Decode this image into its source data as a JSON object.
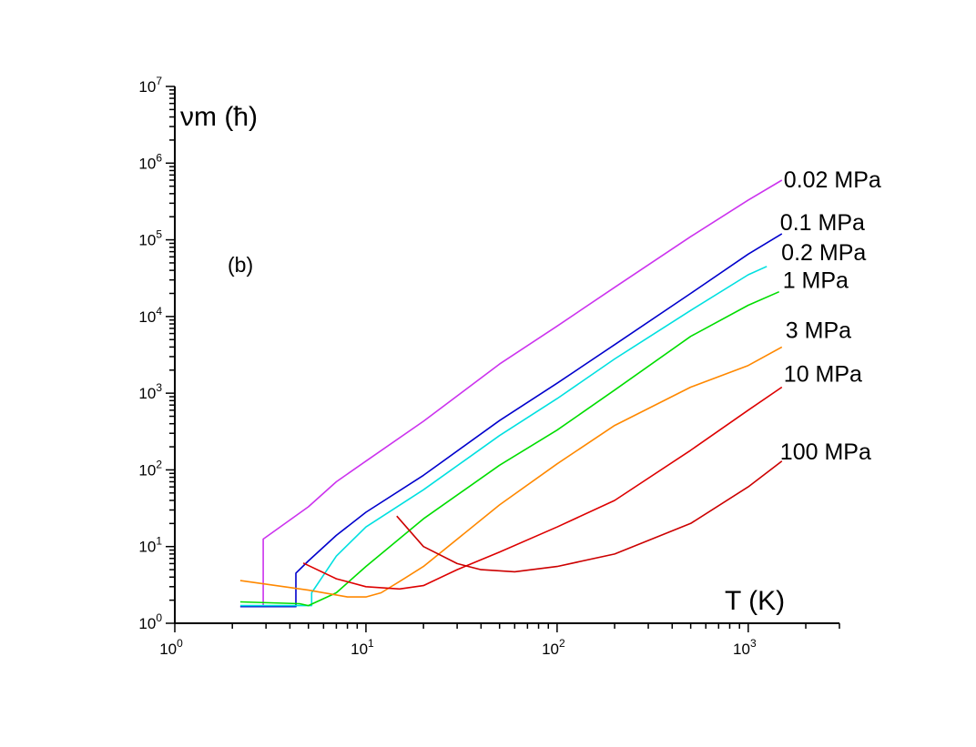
{
  "chart_data": {
    "type": "line",
    "panel_label": "(b)",
    "ylabel": "νm (ħ)",
    "xlabel": "T (K)",
    "xscale": "log",
    "yscale": "log",
    "xlim": [
      1,
      3000
    ],
    "ylim": [
      1,
      10000000
    ],
    "x_ticks": [
      {
        "base": "10",
        "exp": "0",
        "value": 1
      },
      {
        "base": "10",
        "exp": "1",
        "value": 10
      },
      {
        "base": "10",
        "exp": "2",
        "value": 100
      },
      {
        "base": "10",
        "exp": "3",
        "value": 1000
      }
    ],
    "y_ticks": [
      {
        "base": "10",
        "exp": "0",
        "value": 1
      },
      {
        "base": "10",
        "exp": "1",
        "value": 10
      },
      {
        "base": "10",
        "exp": "2",
        "value": 100
      },
      {
        "base": "10",
        "exp": "3",
        "value": 1000
      },
      {
        "base": "10",
        "exp": "4",
        "value": 10000
      },
      {
        "base": "10",
        "exp": "5",
        "value": 100000
      },
      {
        "base": "10",
        "exp": "6",
        "value": 1000000
      },
      {
        "base": "10",
        "exp": "7",
        "value": 10000000
      }
    ],
    "grid": false,
    "legend": "inline labels at right end of each curve",
    "series": [
      {
        "name": "0.02 MPa",
        "color": "#cc33ee",
        "x": [
          2.2,
          2.9,
          2.9,
          5,
          7,
          10,
          20,
          50,
          100,
          200,
          500,
          1000,
          1500
        ],
        "y": [
          1.65,
          1.65,
          12.5,
          33,
          70,
          130,
          430,
          2400,
          7500,
          24000,
          110000,
          330000,
          600000
        ]
      },
      {
        "name": "0.1 MPa",
        "color": "#0000cc",
        "x": [
          2.2,
          4.3,
          4.3,
          5,
          7,
          10,
          20,
          50,
          100,
          200,
          500,
          1000,
          1500
        ],
        "y": [
          1.65,
          1.65,
          4.5,
          6.5,
          14,
          28,
          85,
          440,
          1350,
          4300,
          20000,
          65000,
          120000
        ]
      },
      {
        "name": "0.2 MPa",
        "color": "#00e0e0",
        "x": [
          2.2,
          5.2,
          5.2,
          7,
          10,
          20,
          50,
          100,
          200,
          500,
          1000,
          1250
        ],
        "y": [
          1.7,
          1.7,
          2.5,
          7.5,
          18,
          55,
          280,
          850,
          2800,
          12000,
          35000,
          45000
        ]
      },
      {
        "name": "1 MPa",
        "color": "#00dd00",
        "x": [
          2.2,
          4.5,
          5,
          7,
          10,
          20,
          50,
          100,
          200,
          500,
          1000,
          1450
        ],
        "y": [
          1.9,
          1.8,
          1.7,
          2.5,
          5.5,
          23,
          115,
          330,
          1100,
          5500,
          14000,
          21000
        ]
      },
      {
        "name": "3 MPa",
        "color": "#ff8800",
        "x": [
          2.2,
          5,
          8,
          10,
          12,
          15,
          20,
          50,
          100,
          200,
          500,
          1000,
          1500
        ],
        "y": [
          3.6,
          2.7,
          2.2,
          2.2,
          2.5,
          3.5,
          5.5,
          35,
          120,
          380,
          1200,
          2300,
          4000
        ]
      },
      {
        "name": "10 MPa",
        "color": "#dd0000",
        "x": [
          4.7,
          7,
          10,
          15,
          20,
          30,
          50,
          100,
          200,
          500,
          1000,
          1500
        ],
        "y": [
          6.1,
          3.8,
          3.0,
          2.8,
          3.1,
          5.0,
          8.5,
          18,
          40,
          180,
          600,
          1200
        ]
      },
      {
        "name": "100 MPa",
        "color": "#cc0000",
        "x": [
          14.5,
          20,
          30,
          40,
          60,
          100,
          200,
          300,
          500,
          1000,
          1500
        ],
        "y": [
          25,
          10,
          6,
          5,
          4.7,
          5.5,
          8,
          12,
          20,
          60,
          130
        ]
      }
    ]
  }
}
